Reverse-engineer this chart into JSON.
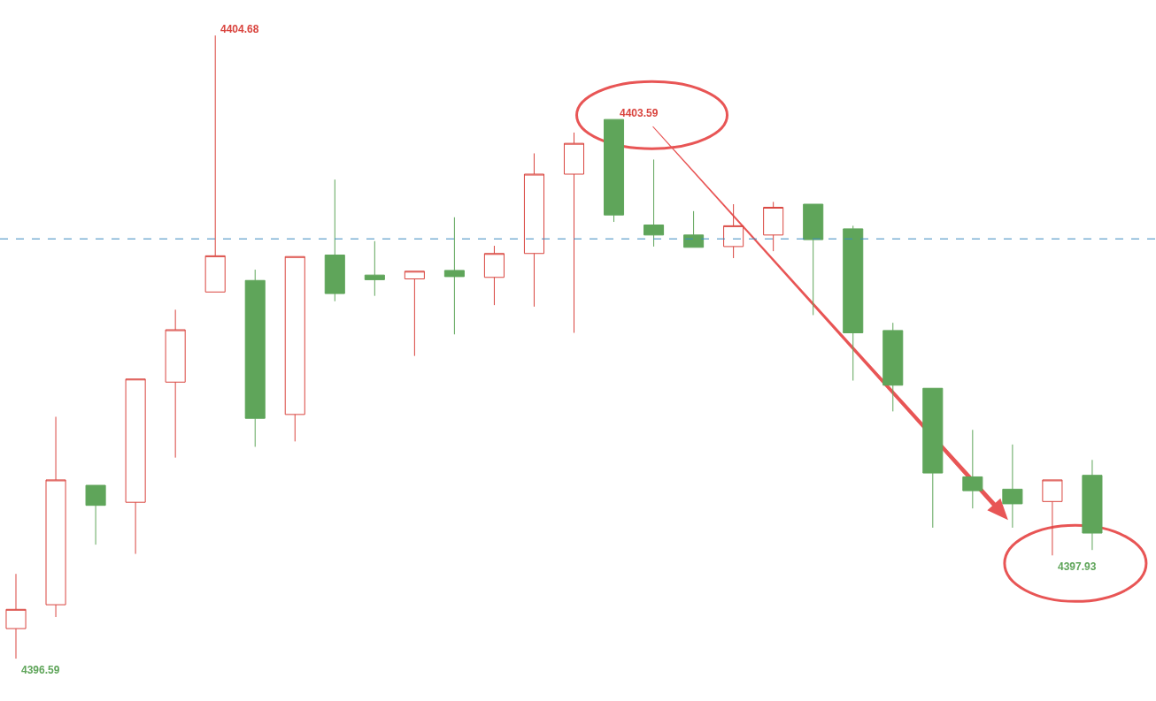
{
  "chart_data": {
    "type": "candlestick",
    "categories": [
      null,
      null,
      null,
      null,
      null,
      null,
      null,
      null,
      null,
      null,
      null,
      null,
      null,
      null,
      null,
      null,
      null,
      null,
      null,
      null,
      null,
      null,
      null,
      null,
      null,
      null,
      null,
      null
    ],
    "ohlc": [
      [
        4396.98,
        4397.69,
        4396.59,
        4397.23
      ],
      [
        4397.29,
        4399.73,
        4397.13,
        4398.91
      ],
      [
        4398.84,
        4398.84,
        4398.07,
        4398.58
      ],
      [
        4398.62,
        4400.22,
        4397.95,
        4400.22
      ],
      [
        4400.18,
        4401.12,
        4399.2,
        4400.86
      ],
      [
        4401.35,
        4404.68,
        4401.35,
        4401.82
      ],
      [
        4401.5,
        4401.64,
        4399.34,
        4399.71
      ],
      [
        4399.76,
        4401.81,
        4399.41,
        4401.81
      ],
      [
        4401.83,
        4402.81,
        4401.23,
        4401.33
      ],
      [
        4401.57,
        4402.01,
        4401.3,
        4401.51
      ],
      [
        4401.52,
        4401.62,
        4400.52,
        4401.62
      ],
      [
        4401.63,
        4402.32,
        4400.8,
        4401.55
      ],
      [
        4401.54,
        4401.95,
        4401.18,
        4401.85
      ],
      [
        4401.85,
        4403.15,
        4401.16,
        4402.88
      ],
      [
        4402.88,
        4403.42,
        4400.82,
        4403.28
      ],
      [
        4403.59,
        4403.59,
        4402.26,
        4402.35
      ],
      [
        4402.22,
        4403.07,
        4401.94,
        4402.09
      ],
      [
        4402.09,
        4402.4,
        4401.93,
        4401.93
      ],
      [
        4401.94,
        4402.49,
        4401.79,
        4402.21
      ],
      [
        4402.09,
        4402.52,
        4401.88,
        4402.45
      ],
      [
        4402.49,
        4402.49,
        4401.05,
        4402.03
      ],
      [
        4402.17,
        4402.21,
        4400.2,
        4400.82
      ],
      [
        4400.85,
        4400.95,
        4399.8,
        4400.14
      ],
      [
        4400.1,
        4400.1,
        4398.29,
        4399.0
      ],
      [
        4398.95,
        4399.56,
        4398.54,
        4398.77
      ],
      [
        4398.79,
        4399.37,
        4398.29,
        4398.6
      ],
      [
        4398.63,
        4398.91,
        4397.93,
        4398.91
      ],
      [
        4398.97,
        4399.17,
        4398.0,
        4398.22
      ]
    ],
    "colors": [
      "#d9443e",
      "#d9443e",
      "#5fa55a",
      "#d9443e",
      "#d9443e",
      "#d9443e",
      "#5fa55a",
      "#d9443e",
      "#5fa55a",
      "#5fa55a",
      "#d9443e",
      "#5fa55a",
      "#d9443e",
      "#d9443e",
      "#d9443e",
      "#5fa55a",
      "#5fa55a",
      "#5fa55a",
      "#d9443e",
      "#d9443e",
      "#5fa55a",
      "#5fa55a",
      "#5fa55a",
      "#5fa55a",
      "#5fa55a",
      "#5fa55a",
      "#d9443e",
      "#5fa55a"
    ],
    "ref_lines": [
      {
        "axis": "y",
        "value": 4402.04,
        "color": "#3a8ac0",
        "line_style": "dashed"
      }
    ],
    "annotations": [
      "4404.68",
      "4403.59",
      "4397.93",
      "4396.59"
    ]
  }
}
